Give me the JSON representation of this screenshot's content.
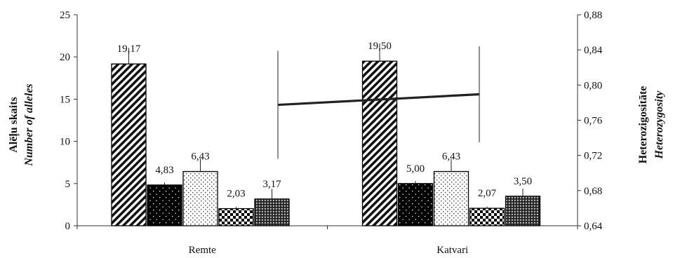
{
  "chart_data": {
    "type": "bar",
    "categories": [
      "Remte",
      "Katvari"
    ],
    "series": [
      {
        "values": [
          19.17,
          19.5
        ],
        "labels": [
          "19,17",
          "19,50"
        ],
        "error": [
          1.9,
          2.1
        ],
        "pattern": "diagonal"
      },
      {
        "values": [
          4.83,
          5.0
        ],
        "labels": [
          "4,83",
          "5,00"
        ],
        "error": [
          0.3,
          0.3
        ],
        "pattern": "dots-on-black"
      },
      {
        "values": [
          6.43,
          6.43
        ],
        "labels": [
          "6,43",
          "6,43"
        ],
        "error": [
          1.5,
          1.5
        ],
        "pattern": "dots-on-white"
      },
      {
        "values": [
          2.03,
          2.07
        ],
        "labels": [
          "2,03",
          "2,07"
        ],
        "error": [
          0.2,
          0.2
        ],
        "pattern": "checker"
      },
      {
        "values": [
          3.17,
          3.5
        ],
        "labels": [
          "3,17",
          "3,50"
        ],
        "error": [
          1.2,
          0.9
        ],
        "pattern": "grid"
      }
    ],
    "line_series": {
      "axis": "right",
      "values": [
        0.7775,
        0.7895
      ],
      "error": [
        0.0615,
        0.0545
      ]
    },
    "y_left": {
      "label_line1": "Alēļu skaits",
      "label_line2": "Number of alleles",
      "ylim": [
        0,
        25
      ],
      "ticks": [
        0,
        5,
        10,
        15,
        20,
        25
      ],
      "tick_labels": [
        "0",
        "5",
        "10",
        "15",
        "20",
        "25"
      ]
    },
    "y_right": {
      "label_line1": "Heterozigositāte",
      "label_line2": "Heterozygosity",
      "ylim": [
        0.64,
        0.88
      ],
      "ticks": [
        0.64,
        0.68,
        0.72,
        0.76,
        0.8,
        0.84,
        0.88
      ],
      "tick_labels": [
        "0,64",
        "0,68",
        "0,72",
        "0,76",
        "0,80",
        "0,84",
        "0,88"
      ]
    },
    "colors": {
      "bar_fill": "#ffffff",
      "bar_stroke": "#000000",
      "line": "#222222"
    },
    "grid": false,
    "legend": "none"
  }
}
